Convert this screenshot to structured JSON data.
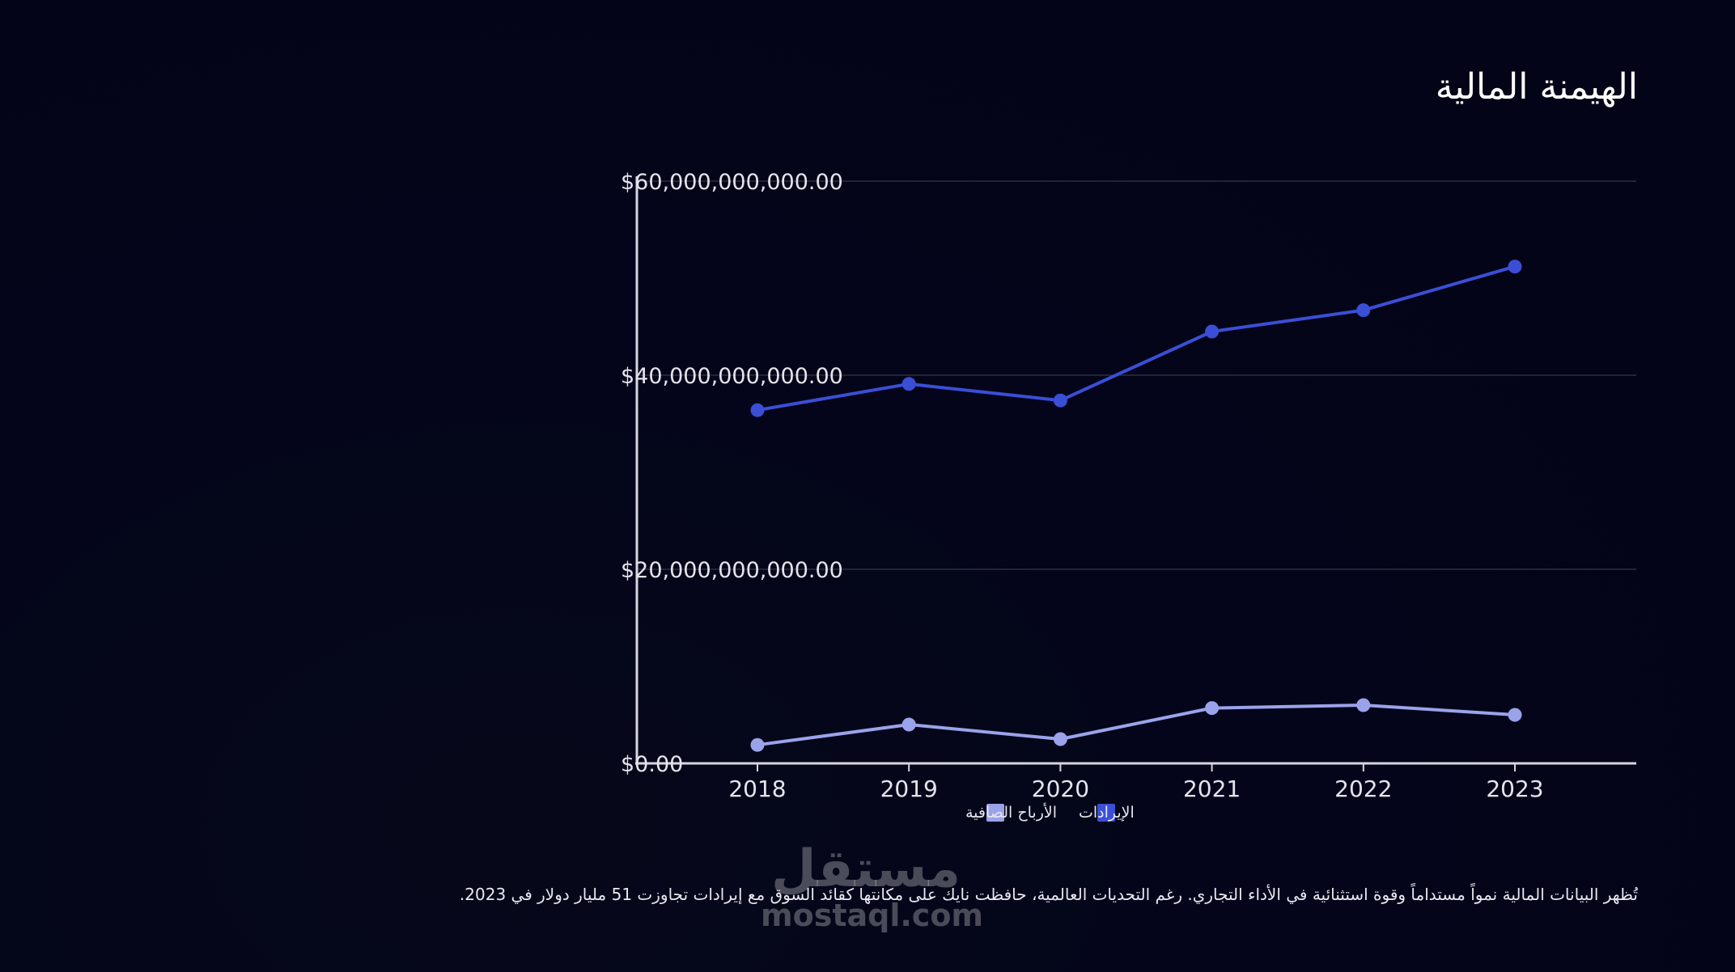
{
  "title": "الهيمنة المالية",
  "description": "تُظهر البيانات المالية نمواً مستداماً وقوة استثنائية في الأداء التجاري. رغم التحديات العالمية، حافظت نايك على مكانتها كقائد السوق مع إيرادات تجاوزت 51 مليار دولار في 2023.",
  "watermark": {
    "arabic": "مستقل",
    "latin": "mostaql.com"
  },
  "colors": {
    "background": "#030417",
    "revenue": "#3a4fd6",
    "profit": "#9aa3ea",
    "grid": "#2c2f40",
    "axis": "#d6d6e0"
  },
  "chart_data": {
    "type": "line",
    "x": [
      "2018",
      "2019",
      "2020",
      "2021",
      "2022",
      "2023"
    ],
    "series": [
      {
        "name": "الإيرادات",
        "color": "#3a4fd6",
        "values": [
          36400000000,
          39100000000,
          37400000000,
          44500000000,
          46700000000,
          51200000000
        ]
      },
      {
        "name": "الأرباح الصافية",
        "color": "#9aa3ea",
        "values": [
          1900000000,
          4000000000,
          2500000000,
          5700000000,
          6000000000,
          5000000000
        ]
      }
    ],
    "ylim": [
      0,
      60000000000
    ],
    "yticks": [
      0,
      20000000000,
      40000000000,
      60000000000
    ],
    "ytick_labels": [
      "$0.00",
      "$20,000,000,000.00",
      "$40,000,000,000.00",
      "$60,000,000,000.00"
    ],
    "grid": true,
    "legend_position": "bottom-center",
    "xlabel": "",
    "ylabel": ""
  }
}
